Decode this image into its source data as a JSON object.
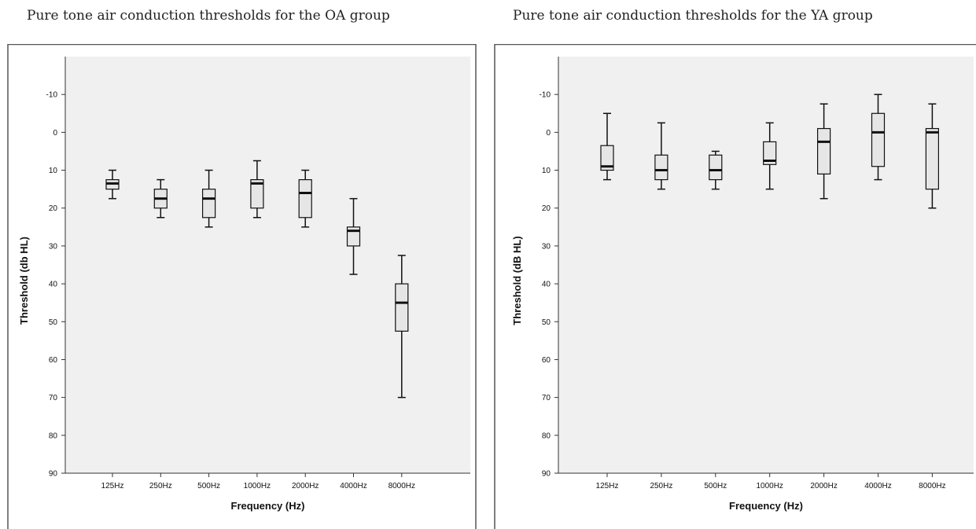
{
  "chart_data": [
    {
      "type": "boxplot",
      "title": "Pure tone air conduction thresholds for the OA group",
      "xlabel": "Frequency (Hz)",
      "ylabel": "Threshold (db HL)",
      "ylim": [
        -20,
        90
      ],
      "y_inverted": true,
      "yticks": [
        -10,
        0,
        10,
        20,
        30,
        40,
        50,
        60,
        70,
        80,
        90
      ],
      "grid": false,
      "categories": [
        "125Hz",
        "250Hz",
        "500Hz",
        "1000Hz",
        "2000Hz",
        "4000Hz",
        "8000Hz"
      ],
      "boxes": [
        {
          "min": 10,
          "q1": 12.5,
          "median": 13.5,
          "q3": 15,
          "max": 17.5
        },
        {
          "min": 12.5,
          "q1": 15,
          "median": 17.5,
          "q3": 20,
          "max": 22.5
        },
        {
          "min": 10,
          "q1": 15,
          "median": 17.5,
          "q3": 22.5,
          "max": 25
        },
        {
          "min": 7.5,
          "q1": 12.5,
          "median": 13.5,
          "q3": 20,
          "max": 22.5
        },
        {
          "min": 10,
          "q1": 12.5,
          "median": 16,
          "q3": 22.5,
          "max": 25
        },
        {
          "min": 17.5,
          "q1": 25,
          "median": 26,
          "q3": 30,
          "max": 37.5
        },
        {
          "min": 32.5,
          "q1": 40,
          "median": 45,
          "q3": 52.5,
          "max": 70
        }
      ]
    },
    {
      "type": "boxplot",
      "title": "Pure tone air conduction thresholds for the YA group",
      "xlabel": "Frequency (Hz)",
      "ylabel": "Threshold (dB HL)",
      "ylim": [
        -20,
        90
      ],
      "y_inverted": true,
      "yticks": [
        -10,
        0,
        10,
        20,
        30,
        40,
        50,
        60,
        70,
        80,
        90
      ],
      "grid": false,
      "categories": [
        "125Hz",
        "250Hz",
        "500Hz",
        "1000Hz",
        "2000Hz",
        "4000Hz",
        "8000Hz"
      ],
      "boxes": [
        {
          "min": -5,
          "q1": 3.5,
          "median": 9,
          "q3": 10,
          "max": 12.5
        },
        {
          "min": -2.5,
          "q1": 6,
          "median": 10,
          "q3": 12.5,
          "max": 15
        },
        {
          "min": 5,
          "q1": 6,
          "median": 10,
          "q3": 12.5,
          "max": 15
        },
        {
          "min": -2.5,
          "q1": 2.5,
          "median": 7.5,
          "q3": 8.5,
          "max": 15
        },
        {
          "min": -7.5,
          "q1": -1,
          "median": 2.5,
          "q3": 11,
          "max": 17.5
        },
        {
          "min": -10,
          "q1": -5,
          "median": 0,
          "q3": 9,
          "max": 12.5
        },
        {
          "min": -7.5,
          "q1": -1,
          "median": 0,
          "q3": 15,
          "max": 20
        }
      ]
    }
  ],
  "colors": {
    "box_fill": "#e6e6e6",
    "plot_bg": "#f0f0f0",
    "stroke": "#111111"
  }
}
